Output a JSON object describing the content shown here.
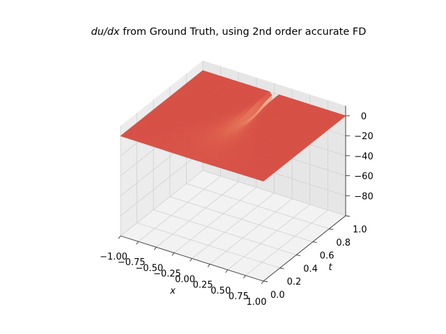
{
  "chart_data": {
    "type": "surface3d",
    "title": {
      "math": "du/dx",
      "rest": " from Ground Truth, using 2nd order accurate FD"
    },
    "xlabel": "x",
    "ylabel": "t",
    "zlabel": "",
    "xlim": [
      -1.0,
      1.0
    ],
    "ylim": [
      0.0,
      1.0
    ],
    "zlim": [
      -100,
      10
    ],
    "xticks": [
      -1.0,
      -0.75,
      -0.5,
      -0.25,
      0.0,
      0.25,
      0.5,
      0.75,
      1.0
    ],
    "xtick_labels": [
      "−1.00",
      "−0.75",
      "−0.50",
      "−0.25",
      "0.00",
      "0.25",
      "0.50",
      "0.75",
      "1.00"
    ],
    "yticks": [
      0.0,
      0.2,
      0.4,
      0.6,
      0.8,
      1.0
    ],
    "ytick_labels": [
      "0.0",
      "0.2",
      "0.4",
      "0.6",
      "0.8",
      "1.0"
    ],
    "zticks": [
      0,
      -20,
      -40,
      -60,
      -80
    ],
    "ztick_labels": [
      "0",
      "−20",
      "−40",
      "−60",
      "−80"
    ],
    "colormap": "coolwarm",
    "grid": true,
    "surface": {
      "description_of_function": "u_x(x,t) of viscous Burgers solution with shock forming at x=0",
      "baseline_value": 0,
      "min_value": -95,
      "min_location": {
        "x": 0.0,
        "t": 1.0
      }
    },
    "colors": {
      "high": "#b40426",
      "mid": "#dddddd",
      "low": "#3b4cc0",
      "pane_left": "#ececec",
      "pane_right": "#e6e6e6",
      "pane_floor": "#f2f2f2",
      "grid": "#d0d0d0"
    }
  }
}
